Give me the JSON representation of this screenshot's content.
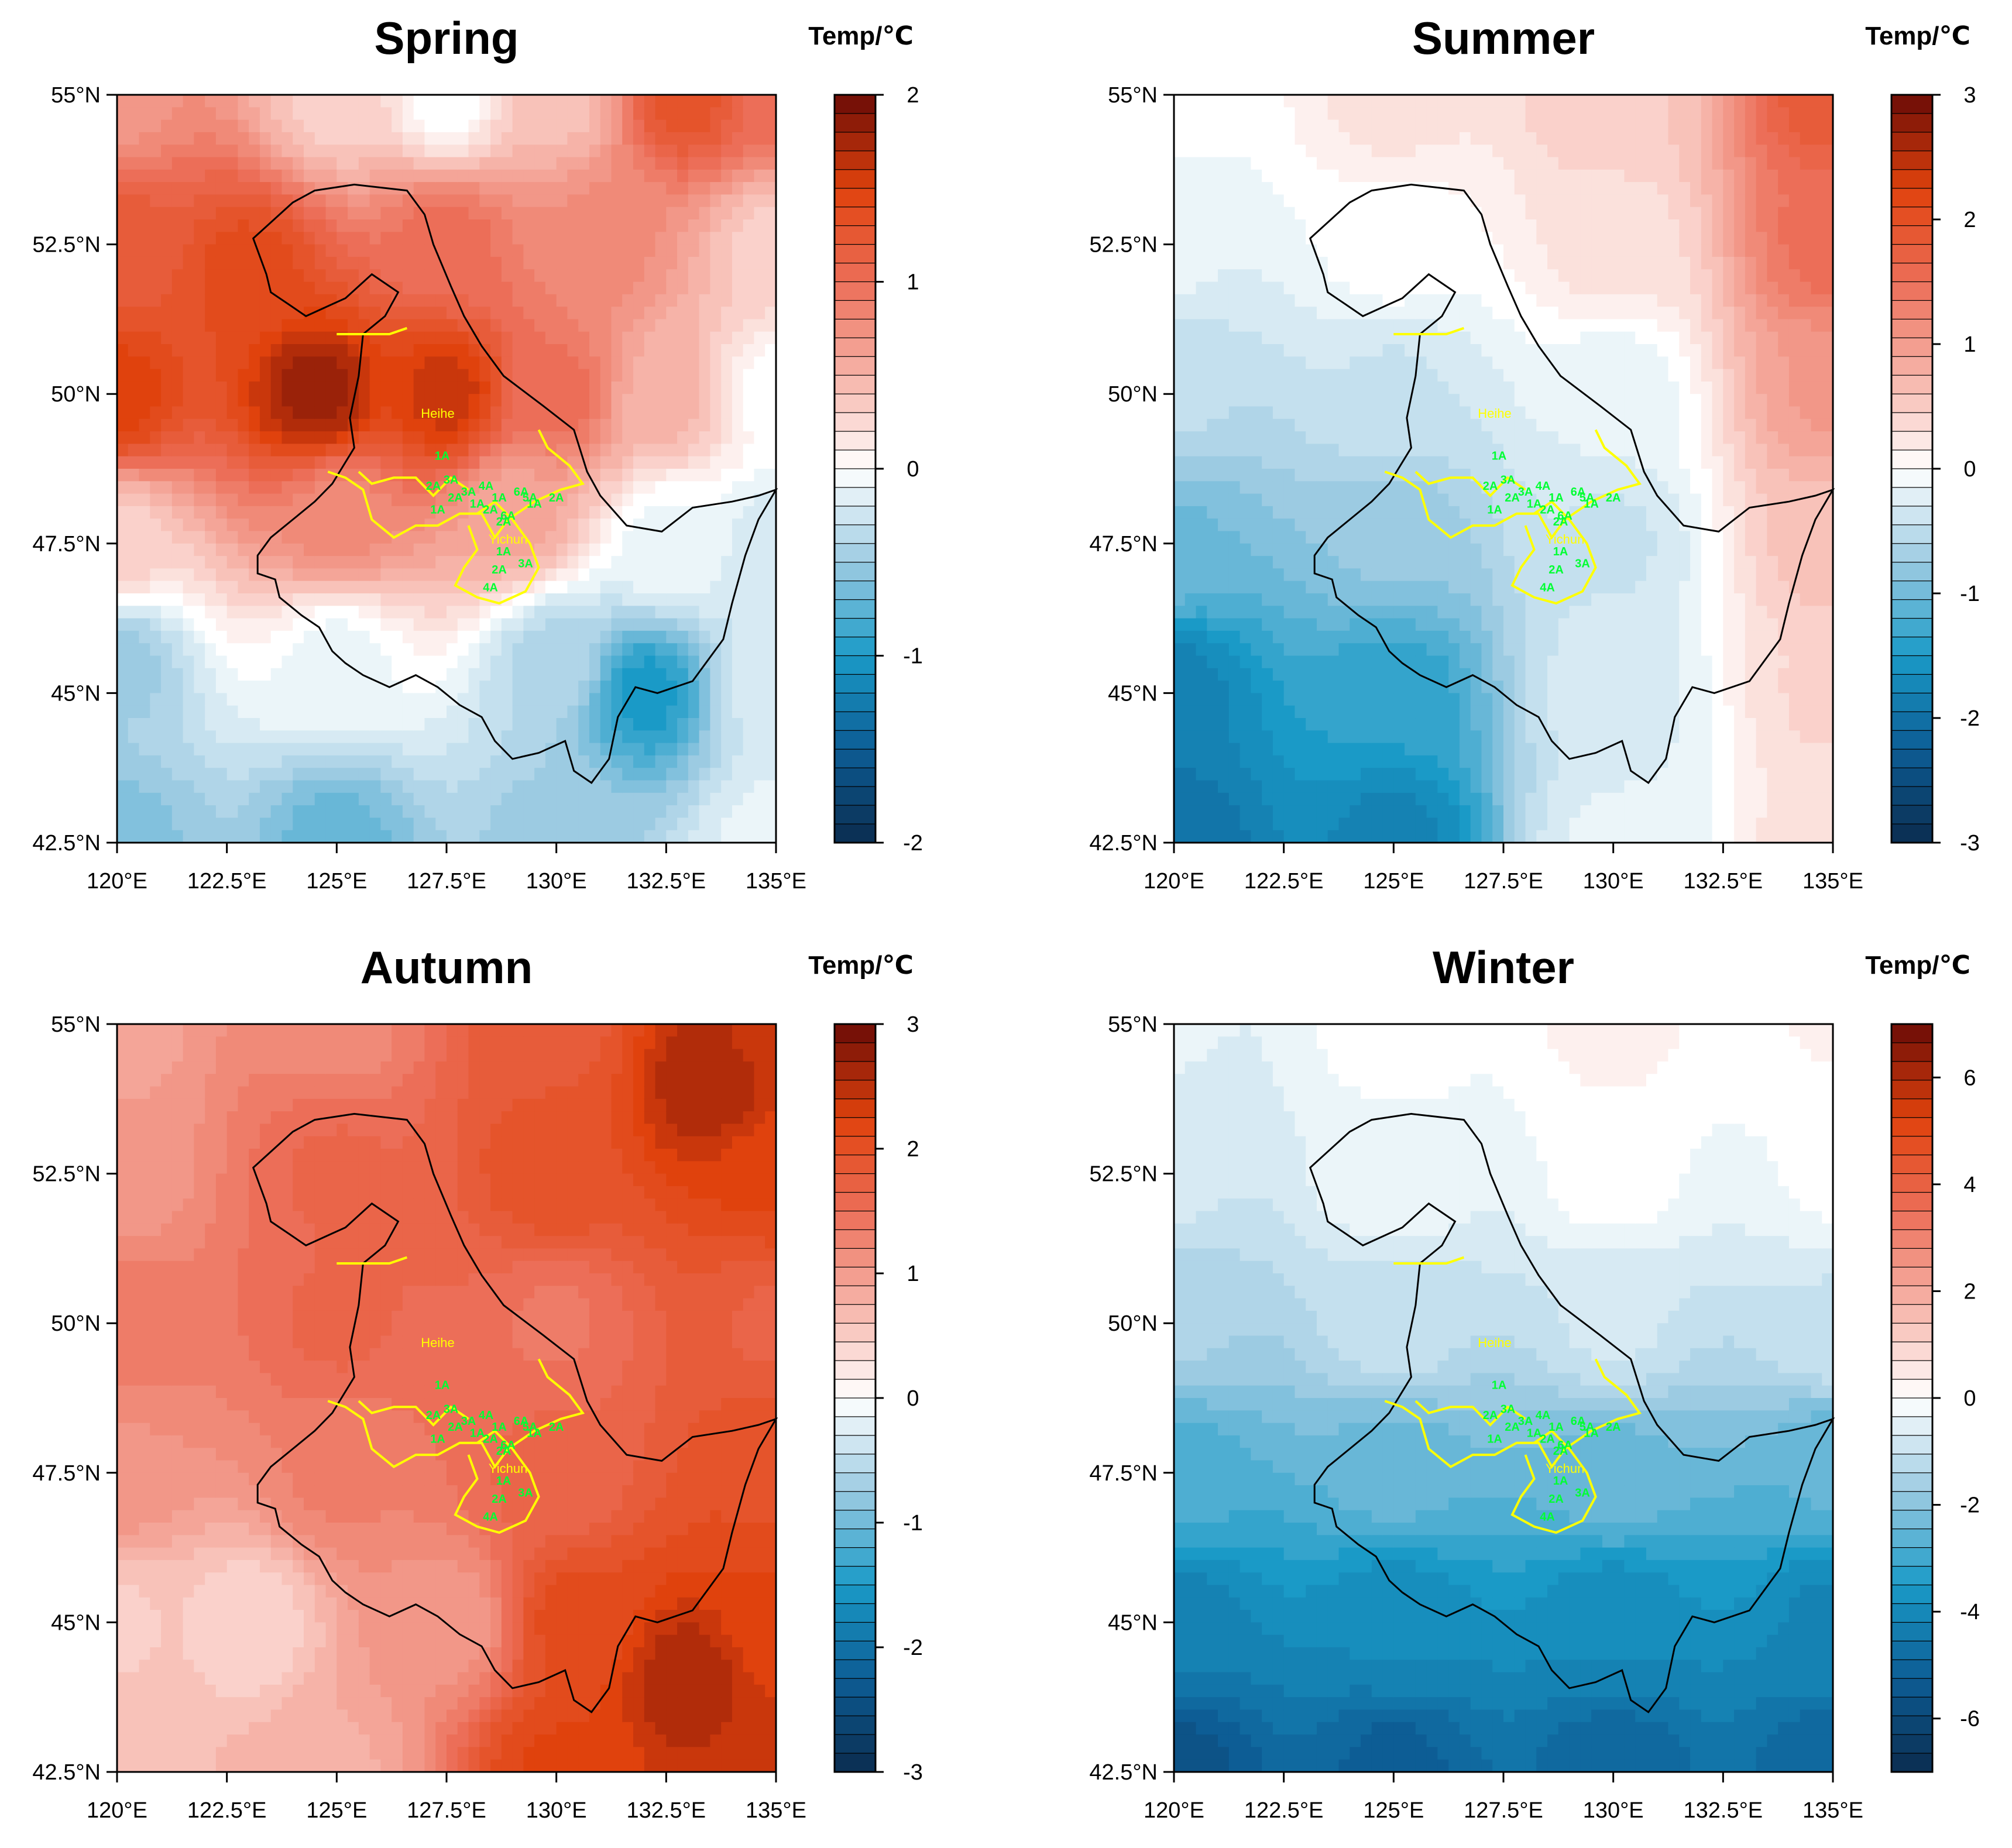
{
  "chart_data": [
    {
      "type": "heatmap",
      "title": "Spring",
      "colorbar_title": "Temp/℃",
      "x_ticks": [
        "120°E",
        "122.5°E",
        "125°E",
        "127.5°E",
        "130°E",
        "132.5°E",
        "135°E"
      ],
      "y_ticks": [
        "42.5°N",
        "45°N",
        "47.5°N",
        "50°N",
        "52.5°N",
        "55°N"
      ],
      "xlim": [
        120,
        135
      ],
      "ylim": [
        42.5,
        55
      ],
      "colorbar_range": [
        -2,
        2
      ],
      "colorbar_ticks": [
        "-2",
        "-1",
        "0",
        "1",
        "2"
      ],
      "anomaly_points": [
        {
          "lon": 120.0,
          "lat": 55.0,
          "value": 0.7
        },
        {
          "lon": 125.0,
          "lat": 55.0,
          "value": 0.3
        },
        {
          "lon": 127.5,
          "lat": 55.0,
          "value": 0.0
        },
        {
          "lon": 130.0,
          "lat": 55.0,
          "value": 0.4
        },
        {
          "lon": 133.0,
          "lat": 55.0,
          "value": 1.3
        },
        {
          "lon": 135.0,
          "lat": 55.0,
          "value": 1.0
        },
        {
          "lon": 120.0,
          "lat": 52.5,
          "value": 1.2
        },
        {
          "lon": 123.0,
          "lat": 52.0,
          "value": 1.4
        },
        {
          "lon": 127.5,
          "lat": 52.5,
          "value": 1.0
        },
        {
          "lon": 131.0,
          "lat": 52.5,
          "value": 0.8
        },
        {
          "lon": 135.0,
          "lat": 52.5,
          "value": 0.3
        },
        {
          "lon": 120.0,
          "lat": 50.0,
          "value": 1.5
        },
        {
          "lon": 124.5,
          "lat": 50.0,
          "value": 1.8
        },
        {
          "lon": 127.5,
          "lat": 50.0,
          "value": 1.6
        },
        {
          "lon": 130.0,
          "lat": 50.0,
          "value": 1.0
        },
        {
          "lon": 132.5,
          "lat": 50.0,
          "value": 0.5
        },
        {
          "lon": 135.0,
          "lat": 50.0,
          "value": 0.0
        },
        {
          "lon": 120.0,
          "lat": 47.5,
          "value": 0.3
        },
        {
          "lon": 125.0,
          "lat": 48.0,
          "value": 0.8
        },
        {
          "lon": 129.0,
          "lat": 48.0,
          "value": 0.6
        },
        {
          "lon": 132.5,
          "lat": 47.5,
          "value": -0.1
        },
        {
          "lon": 135.0,
          "lat": 47.5,
          "value": -0.2
        },
        {
          "lon": 120.0,
          "lat": 45.5,
          "value": -0.5
        },
        {
          "lon": 125.0,
          "lat": 45.5,
          "value": -0.1
        },
        {
          "lon": 130.0,
          "lat": 45.5,
          "value": -0.4
        },
        {
          "lon": 132.0,
          "lat": 45.0,
          "value": -1.0
        },
        {
          "lon": 135.0,
          "lat": 45.0,
          "value": -0.2
        },
        {
          "lon": 120.0,
          "lat": 42.5,
          "value": -0.6
        },
        {
          "lon": 125.0,
          "lat": 42.5,
          "value": -0.7
        },
        {
          "lon": 130.0,
          "lat": 42.5,
          "value": -0.5
        },
        {
          "lon": 135.0,
          "lat": 42.5,
          "value": -0.1
        }
      ]
    },
    {
      "type": "heatmap",
      "title": "Summer",
      "colorbar_title": "Temp/℃",
      "x_ticks": [
        "120°E",
        "122.5°E",
        "125°E",
        "127.5°E",
        "130°E",
        "132.5°E",
        "135°E"
      ],
      "y_ticks": [
        "42.5°N",
        "45°N",
        "47.5°N",
        "50°N",
        "52.5°N",
        "55°N"
      ],
      "xlim": [
        120,
        135
      ],
      "ylim": [
        42.5,
        55
      ],
      "colorbar_range": [
        -3,
        3
      ],
      "colorbar_ticks": [
        "-3",
        "-2",
        "-1",
        "0",
        "1",
        "2",
        "3"
      ],
      "anomaly_points": [
        {
          "lon": 120.0,
          "lat": 55.0,
          "value": 0.0
        },
        {
          "lon": 125.0,
          "lat": 55.0,
          "value": 0.3
        },
        {
          "lon": 130.0,
          "lat": 55.0,
          "value": 0.5
        },
        {
          "lon": 135.0,
          "lat": 55.0,
          "value": 1.8
        },
        {
          "lon": 120.0,
          "lat": 52.5,
          "value": -0.2
        },
        {
          "lon": 125.0,
          "lat": 52.5,
          "value": 0.0
        },
        {
          "lon": 130.0,
          "lat": 52.5,
          "value": 0.3
        },
        {
          "lon": 135.0,
          "lat": 52.5,
          "value": 1.5
        },
        {
          "lon": 120.0,
          "lat": 50.0,
          "value": -0.5
        },
        {
          "lon": 125.0,
          "lat": 50.0,
          "value": -0.4
        },
        {
          "lon": 130.0,
          "lat": 50.0,
          "value": -0.2
        },
        {
          "lon": 135.0,
          "lat": 50.0,
          "value": 1.0
        },
        {
          "lon": 120.0,
          "lat": 47.5,
          "value": -1.0
        },
        {
          "lon": 125.0,
          "lat": 47.5,
          "value": -0.8
        },
        {
          "lon": 130.0,
          "lat": 47.5,
          "value": -0.4
        },
        {
          "lon": 135.0,
          "lat": 47.5,
          "value": 0.6
        },
        {
          "lon": 120.0,
          "lat": 45.0,
          "value": -1.8
        },
        {
          "lon": 125.0,
          "lat": 45.0,
          "value": -1.4
        },
        {
          "lon": 130.0,
          "lat": 45.0,
          "value": -0.3
        },
        {
          "lon": 135.0,
          "lat": 45.0,
          "value": 0.4
        },
        {
          "lon": 120.0,
          "lat": 42.5,
          "value": -2.0
        },
        {
          "lon": 125.0,
          "lat": 42.5,
          "value": -1.8
        },
        {
          "lon": 130.0,
          "lat": 42.5,
          "value": -0.2
        },
        {
          "lon": 135.0,
          "lat": 42.5,
          "value": 0.3
        }
      ]
    },
    {
      "type": "heatmap",
      "title": "Autumn",
      "colorbar_title": "Temp/℃",
      "x_ticks": [
        "120°E",
        "122.5°E",
        "125°E",
        "127.5°E",
        "130°E",
        "132.5°E",
        "135°E"
      ],
      "y_ticks": [
        "42.5°N",
        "45°N",
        "47.5°N",
        "50°N",
        "52.5°N",
        "55°N"
      ],
      "xlim": [
        120,
        135
      ],
      "ylim": [
        42.5,
        55
      ],
      "colorbar_range": [
        -3,
        3
      ],
      "colorbar_ticks": [
        "-3",
        "-2",
        "-1",
        "0",
        "1",
        "2",
        "3"
      ],
      "anomaly_points": [
        {
          "lon": 120.0,
          "lat": 55.0,
          "value": 0.9
        },
        {
          "lon": 125.0,
          "lat": 55.0,
          "value": 1.2
        },
        {
          "lon": 130.0,
          "lat": 55.0,
          "value": 1.8
        },
        {
          "lon": 133.5,
          "lat": 54.0,
          "value": 2.6
        },
        {
          "lon": 135.0,
          "lat": 55.0,
          "value": 2.4
        },
        {
          "lon": 120.0,
          "lat": 52.5,
          "value": 1.0
        },
        {
          "lon": 125.0,
          "lat": 52.5,
          "value": 1.6
        },
        {
          "lon": 130.0,
          "lat": 52.5,
          "value": 2.0
        },
        {
          "lon": 135.0,
          "lat": 52.5,
          "value": 2.2
        },
        {
          "lon": 120.0,
          "lat": 50.0,
          "value": 1.4
        },
        {
          "lon": 125.0,
          "lat": 50.0,
          "value": 1.6
        },
        {
          "lon": 130.0,
          "lat": 50.0,
          "value": 1.4
        },
        {
          "lon": 135.0,
          "lat": 50.0,
          "value": 1.7
        },
        {
          "lon": 120.0,
          "lat": 47.5,
          "value": 1.1
        },
        {
          "lon": 125.0,
          "lat": 47.5,
          "value": 1.3
        },
        {
          "lon": 130.0,
          "lat": 47.5,
          "value": 1.6
        },
        {
          "lon": 135.0,
          "lat": 47.5,
          "value": 2.0
        },
        {
          "lon": 120.0,
          "lat": 45.0,
          "value": 0.5
        },
        {
          "lon": 123.0,
          "lat": 45.0,
          "value": 0.4
        },
        {
          "lon": 127.5,
          "lat": 45.0,
          "value": 1.0
        },
        {
          "lon": 130.5,
          "lat": 45.0,
          "value": 2.1
        },
        {
          "lon": 133.0,
          "lat": 44.0,
          "value": 2.6
        },
        {
          "lon": 135.0,
          "lat": 45.0,
          "value": 2.2
        },
        {
          "lon": 120.0,
          "lat": 42.5,
          "value": 0.6
        },
        {
          "lon": 125.0,
          "lat": 42.5,
          "value": 0.8
        },
        {
          "lon": 130.0,
          "lat": 42.5,
          "value": 2.2
        },
        {
          "lon": 135.0,
          "lat": 42.5,
          "value": 2.4
        }
      ]
    },
    {
      "type": "heatmap",
      "title": "Winter",
      "colorbar_title": "Temp/℃",
      "x_ticks": [
        "120°E",
        "122.5°E",
        "125°E",
        "127.5°E",
        "130°E",
        "132.5°E",
        "135°E"
      ],
      "y_ticks": [
        "42.5°N",
        "45°N",
        "47.5°N",
        "50°N",
        "52.5°N",
        "55°N"
      ],
      "xlim": [
        120,
        135
      ],
      "ylim": [
        42.5,
        55
      ],
      "colorbar_range": [
        -7,
        7
      ],
      "colorbar_ticks": [
        "-6",
        "-4",
        "-2",
        "0",
        "2",
        "4",
        "6"
      ],
      "anomaly_points": [
        {
          "lon": 120.0,
          "lat": 55.0,
          "value": -0.5
        },
        {
          "lon": 125.0,
          "lat": 55.0,
          "value": 0.0
        },
        {
          "lon": 130.0,
          "lat": 55.0,
          "value": 0.3
        },
        {
          "lon": 135.0,
          "lat": 55.0,
          "value": 0.2
        },
        {
          "lon": 120.0,
          "lat": 52.5,
          "value": -0.8
        },
        {
          "lon": 125.0,
          "lat": 52.5,
          "value": -0.2
        },
        {
          "lon": 130.0,
          "lat": 52.5,
          "value": 0.0
        },
        {
          "lon": 135.0,
          "lat": 52.5,
          "value": -0.1
        },
        {
          "lon": 120.0,
          "lat": 50.0,
          "value": -1.5
        },
        {
          "lon": 125.0,
          "lat": 50.0,
          "value": -1.0
        },
        {
          "lon": 130.0,
          "lat": 50.0,
          "value": -0.8
        },
        {
          "lon": 135.0,
          "lat": 50.0,
          "value": -0.9
        },
        {
          "lon": 120.0,
          "lat": 47.5,
          "value": -2.8
        },
        {
          "lon": 125.0,
          "lat": 47.5,
          "value": -2.5
        },
        {
          "lon": 130.0,
          "lat": 47.5,
          "value": -2.4
        },
        {
          "lon": 135.0,
          "lat": 47.5,
          "value": -2.6
        },
        {
          "lon": 120.0,
          "lat": 45.0,
          "value": -4.2
        },
        {
          "lon": 125.0,
          "lat": 45.0,
          "value": -4.0
        },
        {
          "lon": 130.0,
          "lat": 45.0,
          "value": -4.0
        },
        {
          "lon": 135.0,
          "lat": 45.0,
          "value": -4.1
        },
        {
          "lon": 120.0,
          "lat": 42.5,
          "value": -5.6
        },
        {
          "lon": 125.0,
          "lat": 42.5,
          "value": -5.2
        },
        {
          "lon": 130.0,
          "lat": 42.5,
          "value": -5.0
        },
        {
          "lon": 135.0,
          "lat": 42.5,
          "value": -5.0
        }
      ]
    }
  ],
  "map_labels": {
    "spring": [
      "Heihe",
      "Yichun"
    ],
    "summer": [
      "Heihe",
      "Yichun"
    ],
    "autumn": [
      "Heihe",
      "Yichun"
    ],
    "winter": [
      "Heihe",
      "Yichun"
    ]
  },
  "station_labels": [
    "1A",
    "2A",
    "3A",
    "1A",
    "2A",
    "3A",
    "1A",
    "2A",
    "5A",
    "6A",
    "1A",
    "2A",
    "6A",
    "1A",
    "2A",
    "4A",
    "1A",
    "2A",
    "3A",
    "4A"
  ],
  "colors": {
    "border": "#000000",
    "city_boundary": "#ffff00",
    "stations": "#00ff33",
    "palette": [
      "#0b2c4f",
      "#0d5d95",
      "#1a9ac7",
      "#9ccbe2",
      "#ffffff",
      "#f6b3a8",
      "#ec6e58",
      "#e0420d",
      "#6b0c06"
    ]
  }
}
